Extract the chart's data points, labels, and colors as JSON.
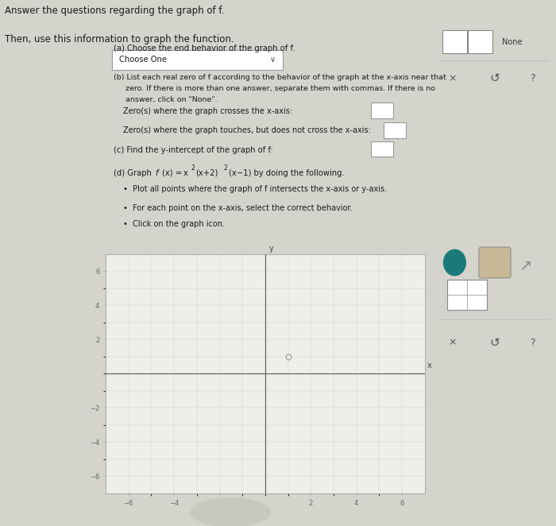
{
  "title_line1": "Answer the questions regarding the graph of f.",
  "title_line2": "Then, use this information to graph the function.",
  "bg_color": "#d4d4cc",
  "panel_bg": "#f2f2ee",
  "panel_border": "#aaaaaa",
  "text_color": "#1a1a1a",
  "section_a": "(a) Choose the end behavior of the graph of f.",
  "dropdown_label": "Choose One",
  "section_b_line1": "(b) List each real zero of f according to the behavior of the graph at the x-axis near that",
  "section_b_line2": "     zero. If there is more than one answer, separate them with commas. If there is no",
  "section_b_line3": "     answer, click on \"None\".",
  "zero_crosses": "Zero(s) where the graph crosses the x-axis:",
  "zero_touches": "Zero(s) where the graph touches, but does not cross the x-axis:",
  "section_c": "(c) Find the y-intercept of the graph of f:",
  "section_d": "(d) Graph f(x) = x",
  "section_d2": "(x+2)",
  "section_d3": "(x−1) by doing the following.",
  "bullet1": "•  Plot all points where the graph of f intersects the x-axis or y-axis.",
  "bullet2": "•  For each point on the x-axis, select the correct behavior.",
  "bullet3": "•  Click on the graph icon.",
  "graph_xlim": [
    -7,
    7
  ],
  "graph_ylim": [
    -7,
    7
  ],
  "graph_xticks": [
    -6,
    -4,
    -2,
    2,
    4,
    6
  ],
  "graph_yticks": [
    -6,
    -4,
    -2,
    2,
    4,
    6
  ],
  "grid_color": "#c0c0b8",
  "axis_color": "#666666",
  "right_panel_bg": "#ddddd5",
  "dot_color": "#1a7a7a",
  "circle_color": "#c8c8c0"
}
